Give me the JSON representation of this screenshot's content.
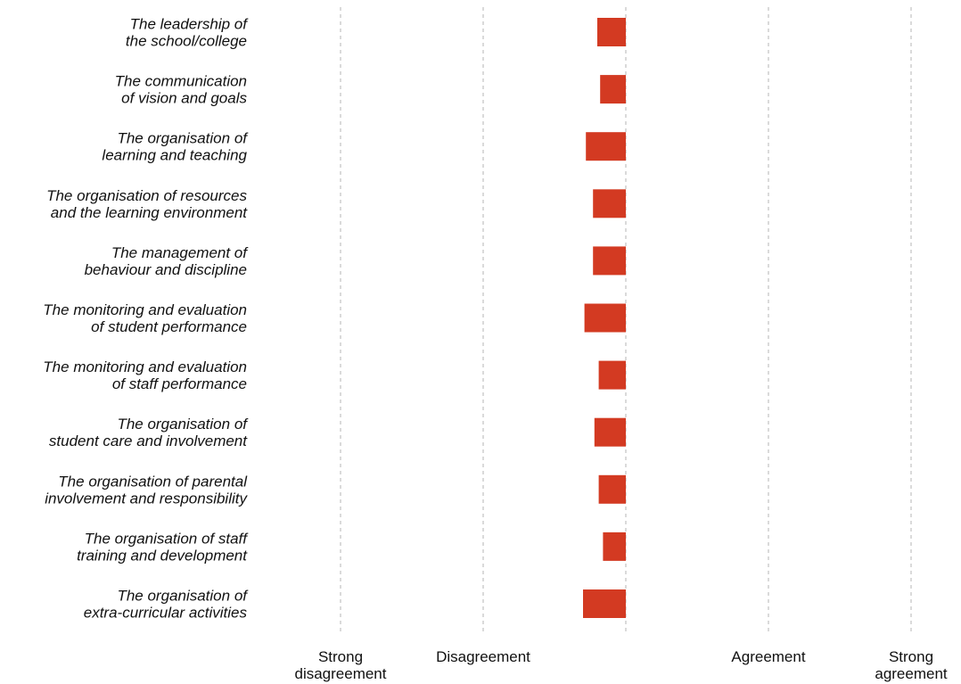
{
  "chart_data": {
    "type": "bar",
    "orientation": "horizontal",
    "categories": [
      [
        "The leadership of",
        "the school/college"
      ],
      [
        "The communication",
        "of vision and goals"
      ],
      [
        "The organisation of",
        "learning and teaching"
      ],
      [
        "The organisation of resources",
        "and the learning environment"
      ],
      [
        "The management of",
        "behaviour and discipline"
      ],
      [
        "The monitoring and evaluation",
        "of student performance"
      ],
      [
        "The monitoring and evaluation",
        "of staff performance"
      ],
      [
        "The organisation of",
        "student care and involvement"
      ],
      [
        "The organisation of parental",
        "involvement and responsibility"
      ],
      [
        "The organisation of staff",
        "training and development"
      ],
      [
        "The organisation of",
        "extra-curricular activities"
      ]
    ],
    "values": [
      -0.2,
      -0.18,
      -0.28,
      -0.23,
      -0.23,
      -0.29,
      -0.19,
      -0.22,
      -0.19,
      -0.16,
      -0.3
    ],
    "xlim": [
      -2,
      2
    ],
    "xticks": [
      {
        "value": -2,
        "label": [
          "Strong",
          "disagreement"
        ]
      },
      {
        "value": -1,
        "label": [
          "Disagreement"
        ]
      },
      {
        "value": 0,
        "label": []
      },
      {
        "value": 1,
        "label": [
          "Agreement"
        ]
      },
      {
        "value": 2,
        "label": [
          "Strong",
          "agreement"
        ]
      }
    ],
    "grid": true,
    "bar_color": "#d33a22",
    "grid_color": "#b5b5b5"
  }
}
